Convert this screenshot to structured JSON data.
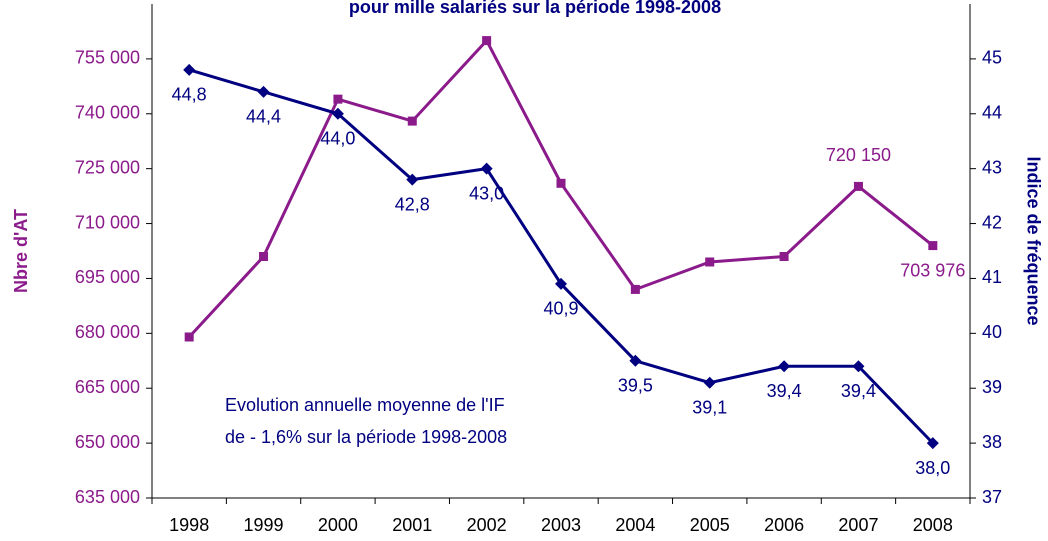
{
  "chart_data": {
    "type": "line",
    "title": "pour mille salariés sur la période 1998-2008",
    "categories": [
      "1998",
      "1999",
      "2000",
      "2001",
      "2002",
      "2003",
      "2004",
      "2005",
      "2006",
      "2007",
      "2008"
    ],
    "y_label": "Nbre d'AT",
    "y2_label": "Indice de fréquence",
    "annotation": [
      "Evolution annuelle moyenne de l'IF",
      "de - 1,6% sur la période 1998-2008"
    ],
    "ylim": [
      635000,
      770000
    ],
    "yticks": [
      {
        "value": 635000,
        "label": "635 000"
      },
      {
        "value": 650000,
        "label": "650 000"
      },
      {
        "value": 665000,
        "label": "665 000"
      },
      {
        "value": 680000,
        "label": "680 000"
      },
      {
        "value": 695000,
        "label": "695 000"
      },
      {
        "value": 710000,
        "label": "710 000"
      },
      {
        "value": 725000,
        "label": "725 000"
      },
      {
        "value": 740000,
        "label": "740 000"
      },
      {
        "value": 755000,
        "label": "755 000"
      }
    ],
    "y2lim": [
      37,
      46
    ],
    "y2ticks": [
      37,
      38,
      39,
      40,
      41,
      42,
      43,
      44,
      45
    ],
    "y_color": "#8b1a8b",
    "y2_color": "#000080",
    "series": [
      {
        "name": "Nbre d'AT",
        "color": "#8b1a8b",
        "marker": "square",
        "values": [
          679000,
          701000,
          744000,
          738000,
          760000,
          721000,
          692000,
          699500,
          701000,
          720150,
          703976
        ],
        "value_labels": [
          null,
          null,
          null,
          null,
          null,
          null,
          null,
          null,
          null,
          "720 150",
          "703 976"
        ]
      },
      {
        "name": "Indice de fréquence",
        "color": "#000080",
        "marker": "diamond",
        "axis": "y2",
        "values": [
          44.8,
          44.4,
          44.0,
          42.8,
          43.0,
          40.9,
          39.5,
          39.1,
          39.4,
          39.4,
          38.0
        ],
        "value_labels": [
          "44,8",
          "44,4",
          "44,0",
          "42,8",
          "43,0",
          "40,9",
          "39,5",
          "39,1",
          "39,4",
          "39,4",
          "38,0"
        ]
      }
    ]
  }
}
